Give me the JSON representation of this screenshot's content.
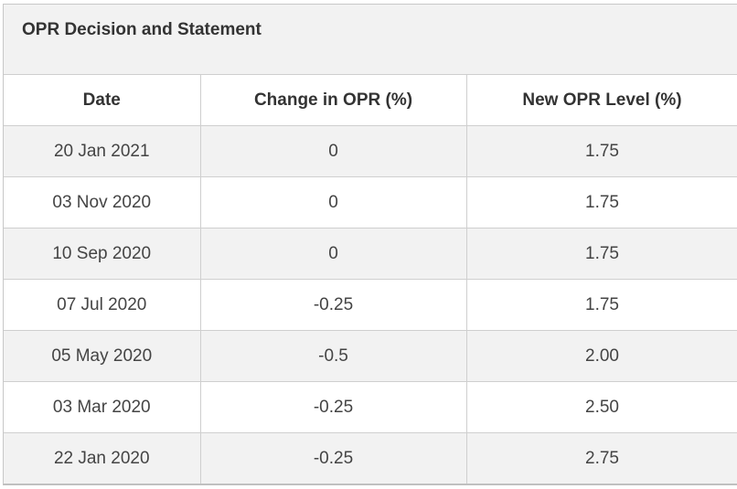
{
  "caption": "OPR Decision and Statement",
  "headers": [
    "Date",
    "Change in OPR (%)",
    "New OPR Level (%)"
  ],
  "rows": [
    [
      "20 Jan 2021",
      "0",
      "1.75"
    ],
    [
      "03 Nov 2020",
      "0",
      "1.75"
    ],
    [
      "10 Sep 2020",
      "0",
      "1.75"
    ],
    [
      "07 Jul 2020",
      "-0.25",
      "1.75"
    ],
    [
      "05 May 2020",
      "-0.5",
      "2.00"
    ],
    [
      "03 Mar 2020",
      "-0.25",
      "2.50"
    ],
    [
      "22 Jan 2020",
      "-0.25",
      "2.75"
    ]
  ]
}
